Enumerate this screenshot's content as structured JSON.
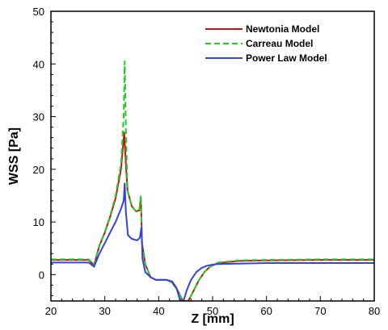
{
  "chart_data": {
    "type": "line",
    "xlabel": "Z [mm]",
    "ylabel": "WSS [Pa]",
    "xlim": [
      20,
      80
    ],
    "ylim": [
      -5,
      50
    ],
    "xticks": [
      20,
      30,
      40,
      50,
      60,
      70,
      80
    ],
    "yticks": [
      0,
      10,
      20,
      30,
      40,
      50
    ],
    "grid": false,
    "legend_position": "top-right",
    "series": [
      {
        "name": "Newtonia Model",
        "color": "#cc1111",
        "style": "solid",
        "points": [
          [
            20,
            2.8
          ],
          [
            27,
            2.8
          ],
          [
            28,
            1.8
          ],
          [
            29,
            5.5
          ],
          [
            30,
            8
          ],
          [
            31,
            11
          ],
          [
            32,
            14.5
          ],
          [
            33,
            20
          ],
          [
            33.6,
            27
          ],
          [
            33.8,
            23
          ],
          [
            34.2,
            16
          ],
          [
            35,
            13
          ],
          [
            35.8,
            12
          ],
          [
            36.4,
            12.2
          ],
          [
            36.7,
            14.5
          ],
          [
            36.9,
            6
          ],
          [
            37.5,
            2
          ],
          [
            38.5,
            -0.5
          ],
          [
            39.5,
            -1
          ],
          [
            40.5,
            -1
          ],
          [
            41.5,
            -1
          ],
          [
            42.5,
            -1.5
          ],
          [
            43.5,
            -3
          ],
          [
            44.5,
            -5
          ],
          [
            45.5,
            -5
          ],
          [
            46.5,
            -3
          ],
          [
            47.5,
            -1
          ],
          [
            48.5,
            0.5
          ],
          [
            49.5,
            1.5
          ],
          [
            51,
            2.2
          ],
          [
            55,
            2.6
          ],
          [
            60,
            2.7
          ],
          [
            70,
            2.8
          ],
          [
            80,
            2.8
          ]
        ]
      },
      {
        "name": "Carreau Model",
        "color": "#22cc22",
        "style": "dashed",
        "points": [
          [
            20,
            2.9
          ],
          [
            27,
            2.9
          ],
          [
            28,
            1.9
          ],
          [
            29,
            5.6
          ],
          [
            30,
            8.1
          ],
          [
            31,
            11.2
          ],
          [
            32,
            15
          ],
          [
            33,
            21
          ],
          [
            33.5,
            30
          ],
          [
            33.7,
            40.5
          ],
          [
            33.9,
            28
          ],
          [
            34.2,
            16
          ],
          [
            35,
            13
          ],
          [
            35.8,
            12
          ],
          [
            36.4,
            12.2
          ],
          [
            36.7,
            15
          ],
          [
            36.9,
            6
          ],
          [
            37.5,
            2
          ],
          [
            38.5,
            -0.5
          ],
          [
            39.5,
            -1
          ],
          [
            40.5,
            -1
          ],
          [
            41.5,
            -1
          ],
          [
            42.5,
            -1.5
          ],
          [
            43.5,
            -3
          ],
          [
            44.5,
            -5
          ],
          [
            45.5,
            -5
          ],
          [
            46.5,
            -3
          ],
          [
            47.5,
            -1
          ],
          [
            48.5,
            0.5
          ],
          [
            49.5,
            1.5
          ],
          [
            51,
            2.3
          ],
          [
            55,
            2.7
          ],
          [
            60,
            2.8
          ],
          [
            70,
            2.9
          ],
          [
            80,
            2.9
          ]
        ]
      },
      {
        "name": "Power Law Model",
        "color": "#3344dd",
        "style": "solid",
        "points": [
          [
            20,
            2.3
          ],
          [
            27,
            2.3
          ],
          [
            28,
            1.5
          ],
          [
            29,
            4
          ],
          [
            30,
            6
          ],
          [
            31,
            8
          ],
          [
            32,
            10
          ],
          [
            33,
            12.5
          ],
          [
            33.5,
            14
          ],
          [
            33.7,
            17.3
          ],
          [
            33.9,
            12
          ],
          [
            34.3,
            7.5
          ],
          [
            35,
            6.8
          ],
          [
            36,
            6.5
          ],
          [
            36.5,
            7
          ],
          [
            36.8,
            9
          ],
          [
            37,
            3
          ],
          [
            37.5,
            0.5
          ],
          [
            38.5,
            -0.5
          ],
          [
            39.5,
            -1
          ],
          [
            40.5,
            -1
          ],
          [
            41.5,
            -1
          ],
          [
            42.5,
            -1.3
          ],
          [
            43.3,
            -2.5
          ],
          [
            44,
            -5
          ],
          [
            44.6,
            -5
          ],
          [
            45.2,
            -3
          ],
          [
            46,
            -1
          ],
          [
            47,
            0.5
          ],
          [
            48,
            1.3
          ],
          [
            49,
            1.7
          ],
          [
            50,
            1.9
          ],
          [
            51,
            2
          ],
          [
            55,
            2.1
          ],
          [
            60,
            2.2
          ],
          [
            70,
            2.2
          ],
          [
            80,
            2.2
          ]
        ]
      }
    ]
  }
}
